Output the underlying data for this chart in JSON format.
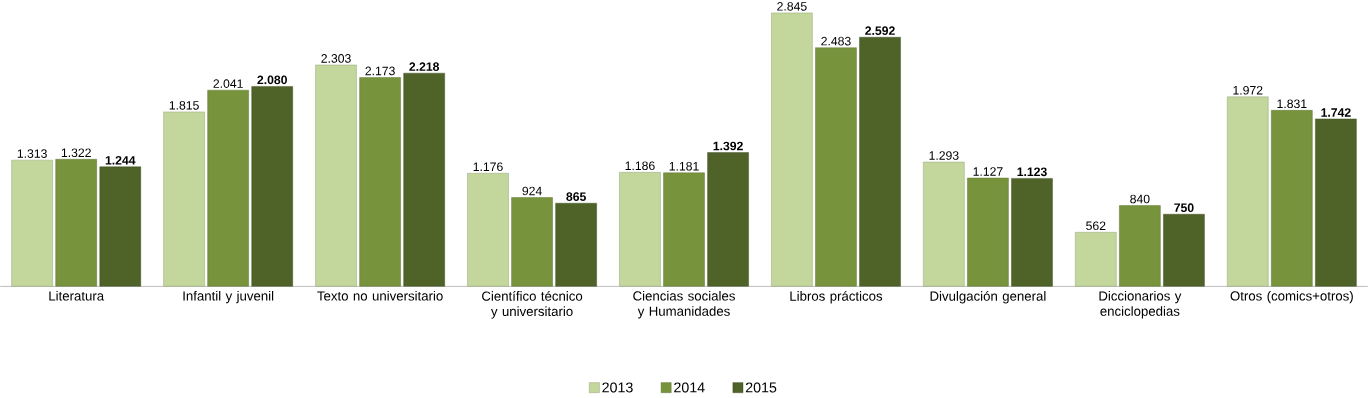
{
  "chart_data": {
    "type": "bar",
    "categories": [
      "Literatura",
      "Infantil y juvenil",
      "Texto no universitario",
      "Científico técnico y universitario",
      "Ciencias sociales y Humanidades",
      "Libros prácticos",
      "Divulgación general",
      "Diccionarios y enciclopedias",
      "Otros (comics+otros)"
    ],
    "series": [
      {
        "name": "2013",
        "color": "#c3d69b",
        "values": [
          1313,
          1815,
          2303,
          1176,
          1186,
          2845,
          1293,
          562,
          1972
        ],
        "value_labels": [
          "1.313",
          "1.815",
          "2.303",
          "1.176",
          "1.186",
          "2.845",
          "1.293",
          "562",
          "1.972"
        ]
      },
      {
        "name": "2014",
        "color": "#77933c",
        "values": [
          1322,
          2041,
          2173,
          924,
          1181,
          2483,
          1127,
          840,
          1831
        ],
        "value_labels": [
          "1.322",
          "2.041",
          "2.173",
          "924",
          "1.181",
          "2.483",
          "1.127",
          "840",
          "1.831"
        ]
      },
      {
        "name": "2015",
        "color": "#4f6228",
        "values": [
          1244,
          2080,
          2218,
          865,
          1392,
          2592,
          1123,
          750,
          1742
        ],
        "value_labels": [
          "**1.244**",
          "**2.080**",
          "**2.218**",
          "**865**",
          "**1.392**",
          "**2.592**",
          "**1.123**",
          "**750**",
          "**1.742**"
        ]
      }
    ],
    "legend": "bottom"
  }
}
